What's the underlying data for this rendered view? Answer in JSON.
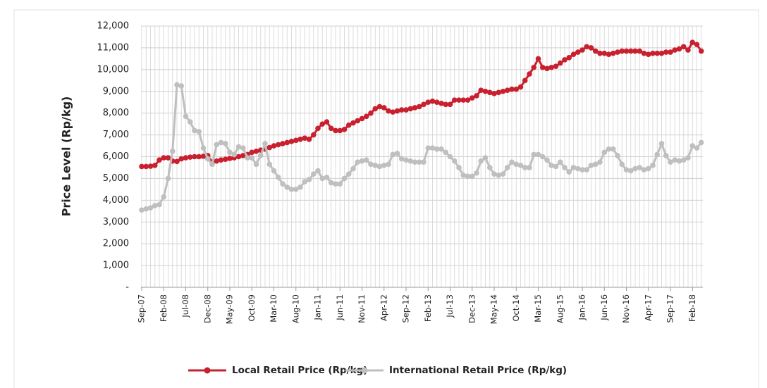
{
  "chart_data": {
    "type": "line",
    "y_label": "Price Level (Rp/kg)",
    "categories": [
      "Sep-07",
      null,
      null,
      null,
      null,
      "Feb-08",
      null,
      null,
      null,
      null,
      "Jul-08",
      null,
      null,
      null,
      null,
      "Dec-08",
      null,
      null,
      null,
      null,
      "May-09",
      null,
      null,
      null,
      null,
      "Oct-09",
      null,
      null,
      null,
      null,
      "Mar-10",
      null,
      null,
      null,
      null,
      "Aug-10",
      null,
      null,
      null,
      null,
      "Jan-11",
      null,
      null,
      null,
      null,
      "Jun-11",
      null,
      null,
      null,
      null,
      "Nov-11",
      null,
      null,
      null,
      null,
      "Apr-12",
      null,
      null,
      null,
      null,
      "Sep-12",
      null,
      null,
      null,
      null,
      "Feb-13",
      null,
      null,
      null,
      null,
      "Jul-13",
      null,
      null,
      null,
      null,
      "Dec-13",
      null,
      null,
      null,
      null,
      "May-14",
      null,
      null,
      null,
      null,
      "Oct-14",
      null,
      null,
      null,
      null,
      "Mar-15",
      null,
      null,
      null,
      null,
      "Aug-15",
      null,
      null,
      null,
      null,
      "Jan-16",
      null,
      null,
      null,
      null,
      "Jun-16",
      null,
      null,
      null,
      null,
      "Nov-16",
      null,
      null,
      null,
      null,
      "Apr-17",
      null,
      null,
      null,
      null,
      "Sep-17",
      null,
      null,
      null,
      null,
      "Feb-18",
      null,
      null
    ],
    "series": [
      {
        "name": "Local Retail Price (Rp/kg)",
        "color": "#c8202f",
        "values": [
          5550,
          5550,
          5560,
          5600,
          5850,
          5950,
          5950,
          5800,
          5780,
          5900,
          5950,
          5980,
          6000,
          6000,
          6020,
          6050,
          5750,
          5800,
          5850,
          5880,
          5920,
          5950,
          6000,
          6050,
          6100,
          6200,
          6250,
          6300,
          6350,
          6420,
          6500,
          6550,
          6600,
          6650,
          6700,
          6750,
          6800,
          6850,
          6800,
          7000,
          7300,
          7500,
          7600,
          7300,
          7200,
          7200,
          7250,
          7450,
          7550,
          7650,
          7750,
          7850,
          8000,
          8200,
          8300,
          8250,
          8100,
          8050,
          8100,
          8150,
          8150,
          8200,
          8250,
          8300,
          8400,
          8500,
          8550,
          8500,
          8450,
          8400,
          8400,
          8600,
          8600,
          8600,
          8600,
          8700,
          8800,
          9050,
          9000,
          8950,
          8900,
          8950,
          9000,
          9050,
          9100,
          9100,
          9200,
          9500,
          9800,
          10100,
          10500,
          10100,
          10050,
          10100,
          10150,
          10300,
          10450,
          10550,
          10700,
          10800,
          10900,
          11050,
          11000,
          10850,
          10750,
          10750,
          10700,
          10750,
          10800,
          10850,
          10850,
          10850,
          10850,
          10850,
          10750,
          10700,
          10750,
          10750,
          10750,
          10800,
          10800,
          10900,
          10950,
          11050,
          10900,
          11250,
          11150,
          10850
        ]
      },
      {
        "name": "International Retail Price (Rp/kg)",
        "color": "#bfbfbf",
        "values": [
          3550,
          3600,
          3650,
          3750,
          3800,
          4150,
          5000,
          6250,
          9300,
          9250,
          7850,
          7600,
          7200,
          7150,
          6400,
          5900,
          5650,
          6550,
          6650,
          6600,
          6200,
          6100,
          6450,
          6400,
          5950,
          5950,
          5650,
          6050,
          6600,
          5650,
          5350,
          5050,
          4750,
          4600,
          4500,
          4500,
          4600,
          4850,
          4950,
          5200,
          5350,
          5000,
          5050,
          4800,
          4750,
          4750,
          5000,
          5200,
          5450,
          5750,
          5800,
          5850,
          5650,
          5600,
          5550,
          5600,
          5650,
          6100,
          6150,
          5900,
          5850,
          5800,
          5750,
          5750,
          5750,
          6400,
          6400,
          6350,
          6350,
          6200,
          6000,
          5800,
          5500,
          5150,
          5100,
          5100,
          5250,
          5800,
          5950,
          5500,
          5200,
          5150,
          5200,
          5500,
          5750,
          5650,
          5600,
          5500,
          5500,
          6100,
          6100,
          6000,
          5850,
          5600,
          5550,
          5750,
          5500,
          5300,
          5500,
          5450,
          5400,
          5400,
          5600,
          5650,
          5750,
          6200,
          6350,
          6350,
          6050,
          5650,
          5400,
          5350,
          5450,
          5500,
          5400,
          5450,
          5600,
          6100,
          6600,
          6050,
          5750,
          5850,
          5800,
          5850,
          5950,
          6500,
          6400,
          6650
        ]
      }
    ],
    "ylim": [
      0,
      12000
    ],
    "yticks": [
      {
        "value": 0,
        "label": "-"
      },
      {
        "value": 1000,
        "label": "1,000"
      },
      {
        "value": 2000,
        "label": "2,000"
      },
      {
        "value": 3000,
        "label": "3,000"
      },
      {
        "value": 4000,
        "label": "4,000"
      },
      {
        "value": 5000,
        "label": "5,000"
      },
      {
        "value": 6000,
        "label": "6,000"
      },
      {
        "value": 7000,
        "label": "7,000"
      },
      {
        "value": 8000,
        "label": "8,000"
      },
      {
        "value": 9000,
        "label": "9,000"
      },
      {
        "value": 10000,
        "label": "10,000"
      },
      {
        "value": 11000,
        "label": "11,000"
      },
      {
        "value": 12000,
        "label": "12,000"
      }
    ],
    "grid": true,
    "legend": "bottom"
  }
}
